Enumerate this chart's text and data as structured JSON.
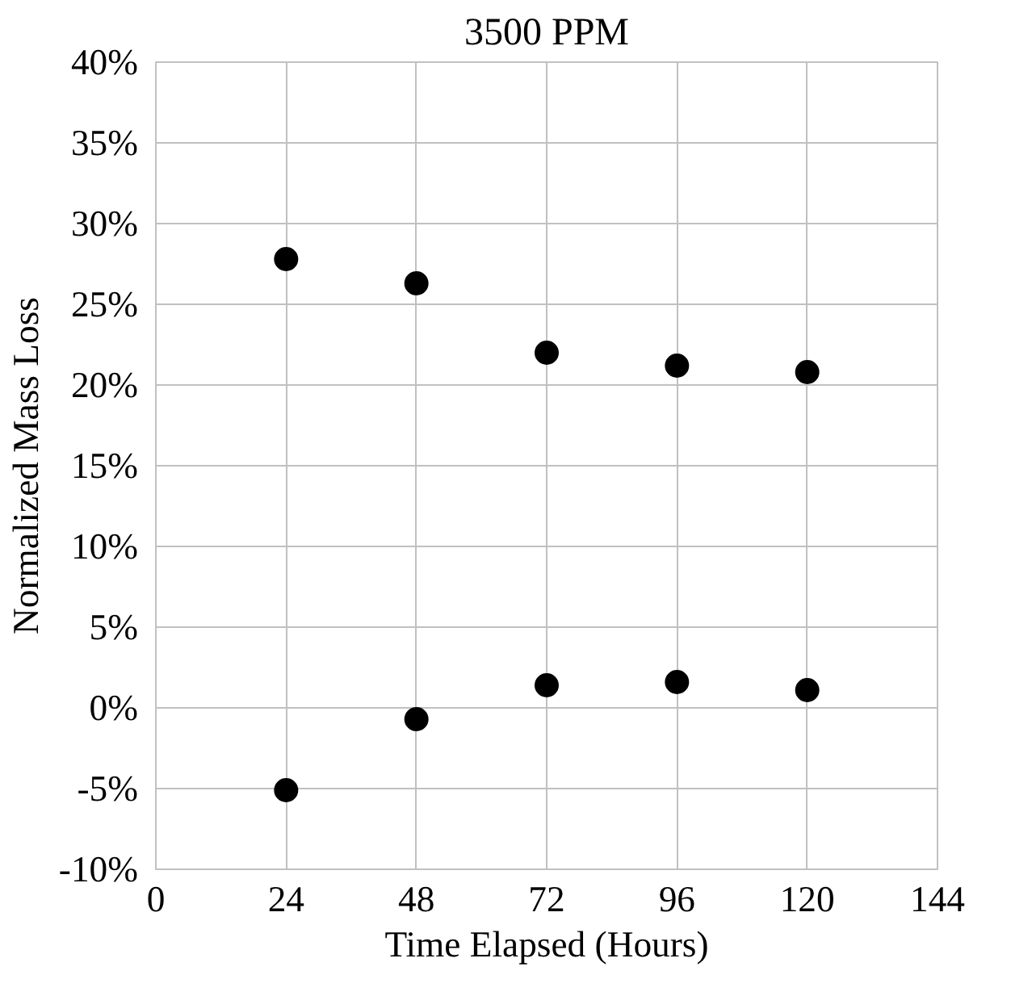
{
  "chart_data": {
    "type": "scatter",
    "title": "3500 PPM",
    "xlabel": "Time Elapsed (Hours)",
    "ylabel": "Normalized Mass Loss",
    "series": [
      {
        "color": "#000000",
        "x": [
          24,
          48,
          72,
          96,
          120,
          24,
          48,
          72,
          96,
          120
        ],
        "values": [
          27.8,
          26.3,
          22.0,
          21.2,
          20.8,
          -5.1,
          -0.7,
          1.4,
          1.6,
          1.1
        ]
      }
    ],
    "marker": "circle",
    "grid": true,
    "xlim": [
      0,
      144
    ],
    "xticks": [
      0,
      24,
      48,
      72,
      96,
      120,
      144
    ],
    "ylim": [
      -10,
      40
    ],
    "yticks": [
      {
        "value": -10,
        "label": "-10%"
      },
      {
        "value": -5,
        "label": "-5%"
      },
      {
        "value": 0,
        "label": "0%"
      },
      {
        "value": 5,
        "label": "5%"
      },
      {
        "value": 10,
        "label": "10%"
      },
      {
        "value": 15,
        "label": "15%"
      },
      {
        "value": 20,
        "label": "20%"
      },
      {
        "value": 25,
        "label": "25%"
      },
      {
        "value": 30,
        "label": "30%"
      },
      {
        "value": 35,
        "label": "35%"
      },
      {
        "value": 40,
        "label": "40%"
      }
    ]
  }
}
